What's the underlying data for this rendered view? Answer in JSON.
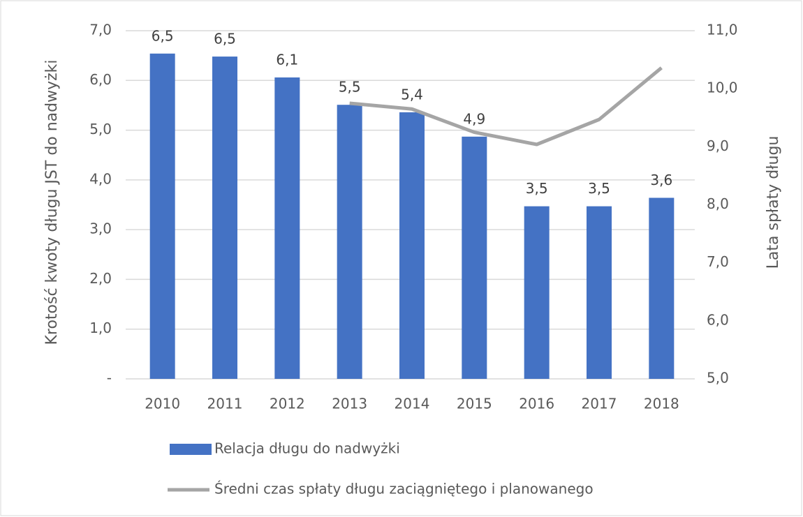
{
  "chart_data": {
    "type": "bar",
    "categories": [
      "2010",
      "2011",
      "2012",
      "2013",
      "2014",
      "2015",
      "2016",
      "2017",
      "2018"
    ],
    "series": [
      {
        "name": "Relacja długu do nadwyżki",
        "type": "bar",
        "color": "#4472c4",
        "values": [
          6.54,
          6.48,
          6.06,
          5.51,
          5.36,
          4.87,
          3.47,
          3.47,
          3.64
        ],
        "value_labels": [
          "6,5",
          "6,5",
          "6,1",
          "5,5",
          "5,4",
          "4,9",
          "3,5",
          "3,5",
          "3,6"
        ]
      },
      {
        "name": "Średni czas spłaty długu zaciągniętego i planowanego",
        "type": "line",
        "color": "#a5a5a5",
        "axis": "y2",
        "values": [
          null,
          null,
          null,
          9.75,
          9.65,
          9.25,
          9.04,
          9.47,
          10.36
        ]
      }
    ],
    "y_label": "Krotość kwoty długu JST do nadwyżki",
    "y2_label": "Lata spłaty długu",
    "ylim": [
      0,
      7
    ],
    "yticks": [
      {
        "value": 0,
        "label": "-"
      },
      {
        "value": 1,
        "label": "1,0"
      },
      {
        "value": 2,
        "label": "2,0"
      },
      {
        "value": 3,
        "label": "3,0"
      },
      {
        "value": 4,
        "label": "4,0"
      },
      {
        "value": 5,
        "label": "5,0"
      },
      {
        "value": 6,
        "label": "6,0"
      },
      {
        "value": 7,
        "label": "7,0"
      }
    ],
    "y2lim": [
      5,
      11
    ],
    "y2ticks": [
      {
        "value": 5,
        "label": "5,0"
      },
      {
        "value": 6,
        "label": "6,0"
      },
      {
        "value": 7,
        "label": "7,0"
      },
      {
        "value": 8,
        "label": "8,0"
      },
      {
        "value": 9,
        "label": "9,0"
      },
      {
        "value": 10,
        "label": "10,0"
      },
      {
        "value": 11,
        "label": "11,0"
      }
    ],
    "grid": true,
    "legend": "bottom"
  }
}
